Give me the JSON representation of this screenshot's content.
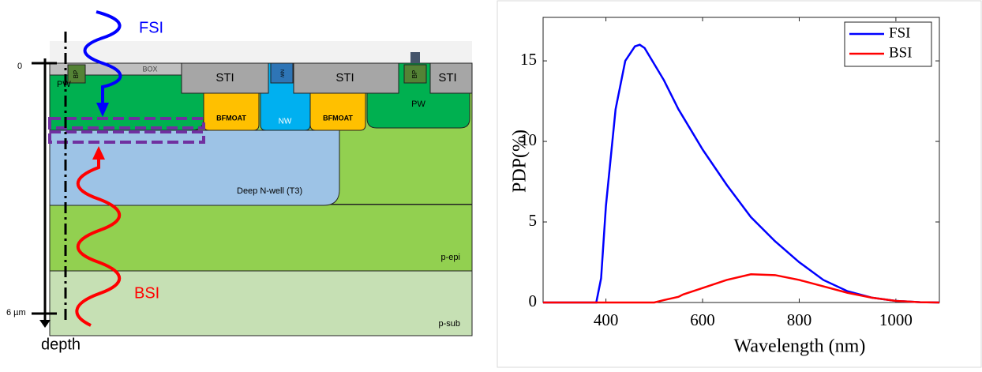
{
  "diagram": {
    "labels": [
      "FSI",
      "BSI",
      "depth",
      "0",
      "6 µm",
      "BP",
      "BP",
      "BOX",
      "STI",
      "STI",
      "STI",
      "NW",
      "NW",
      "BFMOAT",
      "BFMOAT",
      "PW",
      "PW",
      "Deep N-well (T3)",
      "p-epi",
      "p-sub"
    ]
  },
  "chart_data": {
    "type": "line",
    "x_label": "Wavelength (nm)",
    "y_label": "PDP(%)",
    "x": [
      270,
      380,
      390,
      400,
      420,
      440,
      460,
      470,
      480,
      500,
      520,
      550,
      560,
      600,
      650,
      700,
      750,
      800,
      850,
      900,
      950,
      1000,
      1050,
      1090
    ],
    "series": [
      {
        "name": "FSI",
        "color": "#0000ff",
        "values": [
          0,
          0,
          1.5,
          6,
          12,
          15,
          15.9,
          16,
          15.8,
          14.8,
          13.8,
          12,
          11.5,
          9.5,
          7.3,
          5.3,
          3.8,
          2.5,
          1.4,
          0.7,
          0.3,
          0.1,
          0.02,
          0
        ]
      },
      {
        "name": "BSI",
        "color": "#ff0000",
        "values": [
          0,
          0,
          0,
          0,
          0,
          0,
          0,
          0,
          0,
          0,
          0.15,
          0.35,
          0.5,
          0.9,
          1.4,
          1.75,
          1.7,
          1.4,
          1,
          0.6,
          0.3,
          0.1,
          0.02,
          0
        ]
      }
    ],
    "xlim": [
      270,
      1090
    ],
    "xticks": [
      400,
      600,
      800,
      1000
    ],
    "ylim": [
      0,
      17.7
    ],
    "yticks": [
      0,
      5,
      10,
      15
    ],
    "grid": false,
    "legend": "upper-right"
  }
}
